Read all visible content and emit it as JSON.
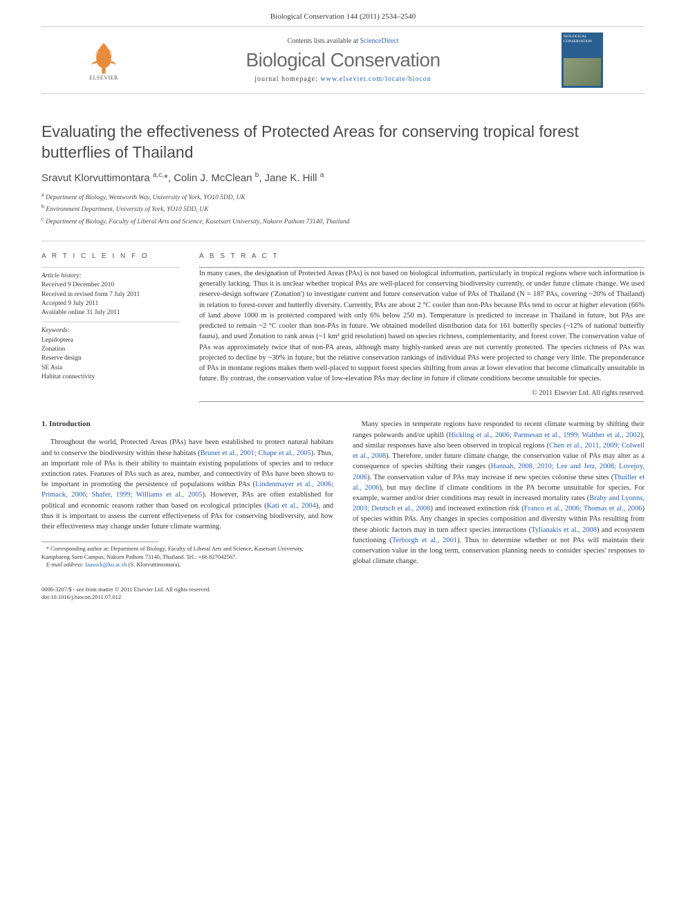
{
  "header": {
    "citation": "Biological Conservation 144 (2011) 2534–2540",
    "contents_prefix": "Contents lists available at ",
    "contents_link": "ScienceDirect",
    "journal_name": "Biological Conservation",
    "homepage_prefix": "journal homepage: ",
    "homepage_url": "www.elsevier.com/locate/biocon",
    "elsevier_label": "ELSEVIER",
    "cover_title": "BIOLOGICAL CONSERVATION"
  },
  "article": {
    "title": "Evaluating the effectiveness of Protected Areas for conserving tropical forest butterflies of Thailand",
    "authors_html": "Sravut Klorvuttimontara <sup>a,c,</sup>*, Colin J. McClean <sup>b</sup>, Jane K. Hill <sup>a</sup>",
    "affiliations": [
      {
        "sup": "a",
        "text": "Department of Biology, Wentworth Way, University of York, YO10 5DD, UK"
      },
      {
        "sup": "b",
        "text": "Environment Department, University of York, YO10 5DD, UK"
      },
      {
        "sup": "c",
        "text": "Department of Biology, Faculty of Liberal Arts and Science, Kasetsart University, Nakorn Pathom 73140, Thailand"
      }
    ]
  },
  "info": {
    "heading": "A R T I C L E   I N F O",
    "history_label": "Article history:",
    "history": [
      "Received 9 December 2010",
      "Received in revised form 7 July 2011",
      "Accepted 9 July 2011",
      "Available online 31 July 2011"
    ],
    "keywords_label": "Keywords:",
    "keywords": [
      "Lepidoptera",
      "Zonation",
      "Reserve design",
      "SE Asia",
      "Habitat connectivity"
    ]
  },
  "abstract": {
    "heading": "A B S T R A C T",
    "text": "In many cases, the designation of Protected Areas (PAs) is not based on biological information, particularly in tropical regions where such information is generally lacking. Thus it is unclear whether tropical PAs are well-placed for conserving biodiversity currently, or under future climate change. We used reserve-design software ('Zonation') to investigate current and future conservation value of PAs of Thailand (N = 187 PAs, covering ~20% of Thailand) in relation to forest-cover and butterfly diversity. Currently, PAs are about 2 °C cooler than non-PAs because PAs tend to occur at higher elevation (66% of land above 1000 m is protected compared with only 6% below 250 m). Temperature is predicted to increase in Thailand in future, but PAs are predicted to remain ~2 °C cooler than non-PAs in future. We obtained modelled distribution data for 161 butterfly species (~12% of national butterfly fauna), and used Zonation to rank areas (~1 km² grid resolution) based on species richness, complementarity, and forest cover. The conservation value of PAs was approximately twice that of non-PA areas, although many highly-ranked areas are not currently protected. The species richness of PAs was projected to decline by ~30% in future, but the relative conservation rankings of individual PAs were projected to change very little. The preponderance of PAs in montane regions makes them well-placed to support forest species shifting from areas at lower elevation that become climatically unsuitable in future. By contrast, the conservation value of low-elevation PAs may decline in future if climate conditions become unsuitable for species.",
    "copyright": "© 2011 Elsevier Ltd. All rights reserved."
  },
  "body": {
    "section_heading": "1. Introduction",
    "left_paragraphs": [
      "Throughout the world, Protected Areas (PAs) have been established to protect natural habitats and to conserve the biodiversity within these habitats (<span class='ref-link'>Bruner et al., 2001; Chape et al., 2005</span>). Thus, an important role of PAs is their ability to maintain existing populations of species and to reduce extinction rates. Features of PAs such as area, number, and connectivity of PAs have been shown to be important in promoting the persistence of populations within PAs (<span class='ref-link'>Lindenmayer et al., 2006; Primack, 2006; Shafer, 1999; Williams et al., 2005</span>). However, PAs are often established for political and economic reasons rather than based on ecological principles (<span class='ref-link'>Kati et al., 2004</span>), and thus it is important to assess the current effectiveness of PAs for conserving biodiversity, and how their effectiveness may change under future climate warming."
    ],
    "right_paragraphs": [
      "Many species in temperate regions have responded to recent climate warming by shifting their ranges polewards and/or uphill (<span class='ref-link'>Hickling et al., 2006; Parmesan et al., 1999; Walther et al., 2002</span>), and similar responses have also been observed in tropical regions (<span class='ref-link'>Chen et al., 2011, 2009; Colwell et al., 2008</span>). Therefore, under future climate change, the conservation value of PAs may alter as a consequence of species shifting their ranges (<span class='ref-link'>Hannah, 2008, 2010; Lee and Jetz, 2008; Lovejoy, 2006</span>). The conservation value of PAs may increase if new species colonise these sites (<span class='ref-link'>Thuiller et al., 2006</span>), but may decline if climate conditions in the PA become unsuitable for species. For example, warmer and/or drier conditions may result in increased mortality rates (<span class='ref-link'>Braby and Lyonns, 2003; Deutsch et al., 2008</span>) and increased extinction risk (<span class='ref-link'>Franco et al., 2006; Thomas et al., 2006</span>) of species within PAs. Any changes in species composition and diversity within PAs resulting from these abiotic factors may in turn affect species interactions (<span class='ref-link'>Tylianakis et al., 2008</span>) and ecosystem functioning (<span class='ref-link'>Terborgh et al., 2001</span>). Thus to determine whether or not PAs will maintain their conservation value in the long term, conservation planning needs to consider species' responses to global climate change."
    ]
  },
  "footnotes": {
    "corresponding": "* Corresponding author at: Department of Biology, Faculty of Liberal Arts and Science, Kasetsart University, Kamphaeng Saen Campus, Nakorn Pathom 73140, Thailand. Tel.: +66 827042567.",
    "email_label": "E-mail address:",
    "email": "faassvk@ku.ac.th",
    "email_name": "(S. Klorvuttimontara)."
  },
  "footer": {
    "line1": "0006-3207/$ - see front matter © 2011 Elsevier Ltd. All rights reserved.",
    "line2": "doi:10.1016/j.biocon.2011.07.012"
  },
  "colors": {
    "text": "#333333",
    "link": "#2a5db0",
    "journal_grey": "#6b6b6b",
    "rule": "#cccccc",
    "elsevier_orange": "#e88b3a",
    "cover_blue": "#2a5f8f"
  },
  "typography": {
    "body_fontsize_pt": 10.5,
    "title_fontsize_pt": 23,
    "journal_fontsize_pt": 28,
    "info_fontsize_pt": 9.5,
    "footnote_fontsize_pt": 8.5
  }
}
